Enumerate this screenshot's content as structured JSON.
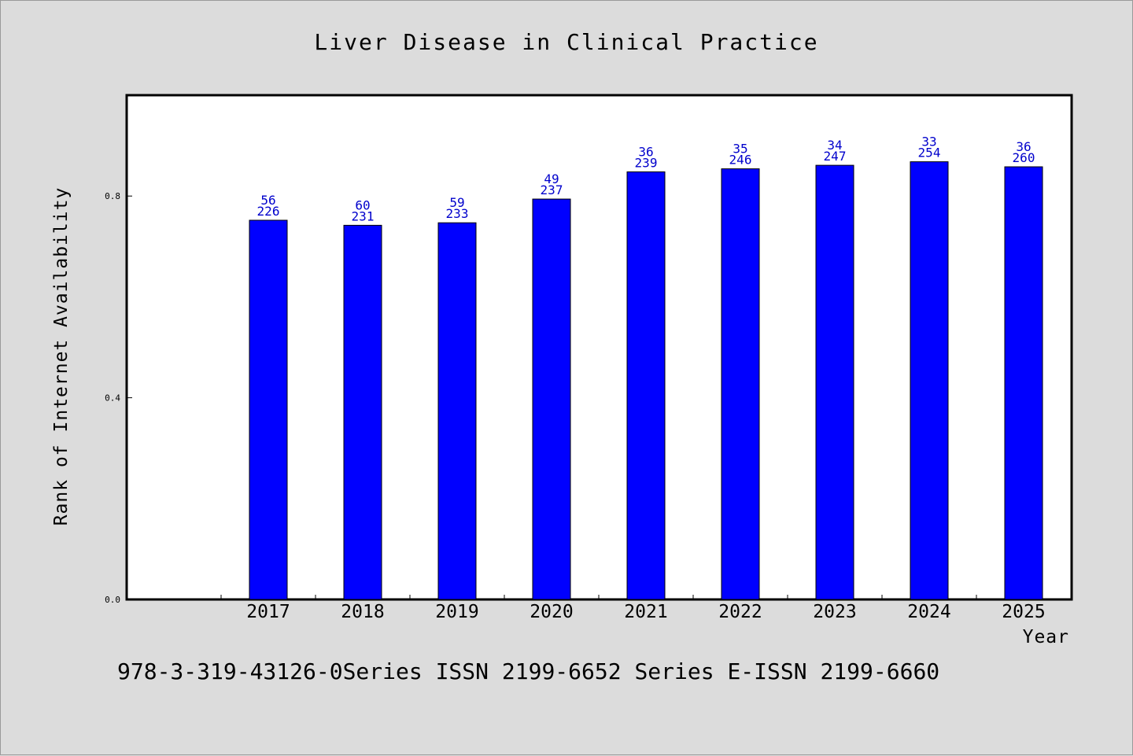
{
  "chart_data": {
    "type": "bar",
    "title": "Liver Disease in Clinical Practice",
    "xlabel": "Year",
    "ylabel": "Rank of Internet Availability",
    "categories": [
      "2017",
      "2018",
      "2019",
      "2020",
      "2021",
      "2022",
      "2023",
      "2024",
      "2025"
    ],
    "values": [
      0.752,
      0.742,
      0.747,
      0.794,
      0.848,
      0.854,
      0.861,
      0.868,
      0.858
    ],
    "bar_labels_top": [
      "56",
      "60",
      "59",
      "49",
      "36",
      "35",
      "34",
      "33",
      "36"
    ],
    "bar_labels_bottom": [
      "226",
      "231",
      "233",
      "237",
      "239",
      "246",
      "247",
      "254",
      "260"
    ],
    "yticks": [
      0.0,
      0.4,
      0.8
    ],
    "ytick_labels": [
      "0.0",
      "0.4",
      "0.8"
    ],
    "ylim": [
      0,
      1.0
    ],
    "grid": false,
    "colors": {
      "bar": "#0000ff",
      "bar_border": "#000000",
      "data_label": "#0000cc",
      "plot_background": "#ffffff",
      "page_background": "#dcdcdc"
    }
  },
  "footer": {
    "text": "978-3-319-43126-0Series ISSN 2199-6652 Series E-ISSN 2199-6660"
  }
}
